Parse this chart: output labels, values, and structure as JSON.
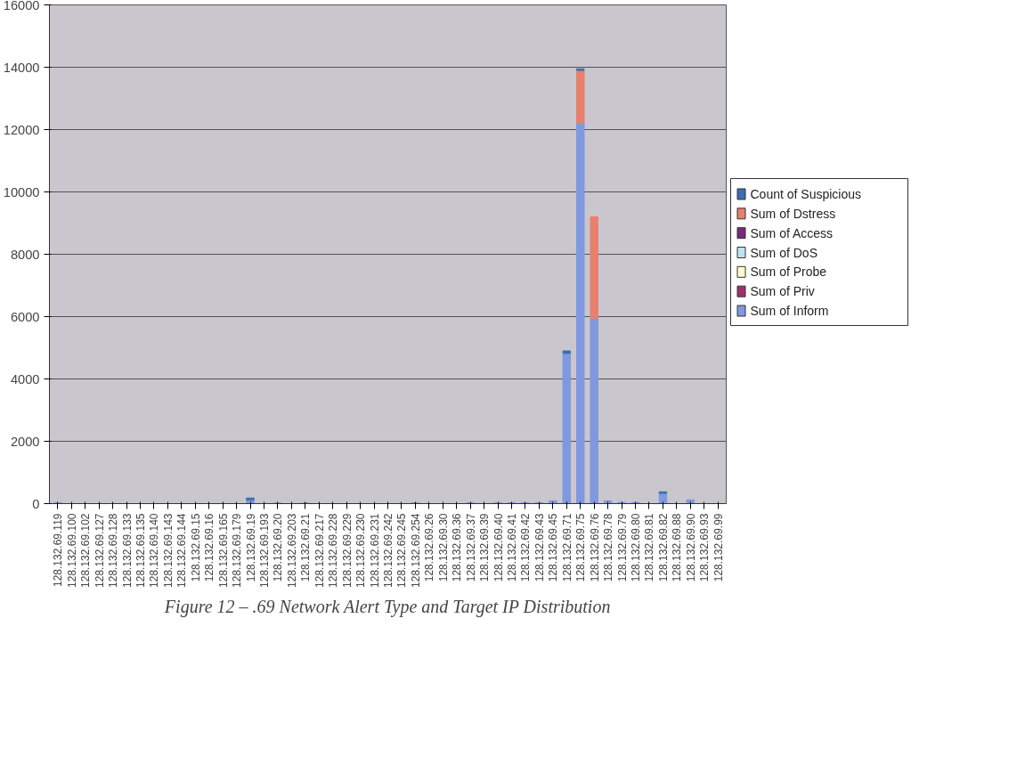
{
  "chart_data": {
    "type": "bar",
    "stacked": true,
    "categories": [
      "128.132.69.119",
      "128.132.69.100",
      "128.132.69.102",
      "128.132.69.127",
      "128.132.69.128",
      "128.132.69.133",
      "128.132.69.135",
      "128.132.69.140",
      "128.132.69.143",
      "128.132.69.144",
      "128.132.69.15",
      "128.132.69.16",
      "128.132.69.165",
      "128.132.69.179",
      "128.132.69.19",
      "128.132.69.193",
      "128.132.69.20",
      "128.132.69.203",
      "128.132.69.21",
      "128.132.69.217",
      "128.132.69.228",
      "128.132.69.229",
      "128.132.69.230",
      "128.132.69.231",
      "128.132.69.242",
      "128.132.69.245",
      "128.132.69.254",
      "128.132.69.26",
      "128.132.69.30",
      "128.132.69.36",
      "128.132.69.37",
      "128.132.69.39",
      "128.132.69.40",
      "128.132.69.41",
      "128.132.69.42",
      "128.132.69.43",
      "128.132.69.45",
      "128.132.69.71",
      "128.132.69.75",
      "128.132.69.76",
      "128.132.69.78",
      "128.132.69.79",
      "128.132.69.80",
      "128.132.69.81",
      "128.132.69.82",
      "128.132.69.88",
      "128.132.69.90",
      "128.132.69.93",
      "128.132.69.99"
    ],
    "series": [
      {
        "name": "Sum of Inform",
        "color": "#7f98e0",
        "values": [
          30,
          0,
          0,
          0,
          0,
          0,
          0,
          0,
          0,
          0,
          0,
          0,
          0,
          0,
          120,
          0,
          20,
          0,
          20,
          0,
          0,
          0,
          0,
          0,
          0,
          0,
          30,
          0,
          0,
          0,
          30,
          0,
          30,
          30,
          30,
          30,
          90,
          4820,
          12200,
          5950,
          90,
          40,
          40,
          0,
          330,
          0,
          120,
          0,
          0
        ]
      },
      {
        "name": "Sum of Priv",
        "color": "#a0306a",
        "values": [
          0,
          0,
          0,
          0,
          0,
          0,
          0,
          0,
          0,
          0,
          0,
          0,
          0,
          0,
          0,
          0,
          0,
          0,
          0,
          0,
          0,
          0,
          0,
          0,
          0,
          0,
          0,
          0,
          0,
          0,
          0,
          0,
          0,
          0,
          0,
          0,
          0,
          0,
          0,
          0,
          0,
          0,
          0,
          0,
          0,
          0,
          0,
          0,
          0
        ]
      },
      {
        "name": "Sum of Probe",
        "color": "#ffffcc",
        "values": [
          0,
          0,
          0,
          0,
          0,
          0,
          0,
          0,
          0,
          0,
          0,
          0,
          0,
          0,
          0,
          0,
          0,
          0,
          0,
          0,
          0,
          0,
          0,
          0,
          0,
          0,
          0,
          0,
          0,
          0,
          0,
          0,
          0,
          0,
          0,
          0,
          0,
          0,
          0,
          0,
          0,
          0,
          0,
          0,
          0,
          0,
          0,
          0,
          0
        ]
      },
      {
        "name": "Sum of DoS",
        "color": "#bfe4ee",
        "values": [
          0,
          0,
          0,
          0,
          0,
          0,
          0,
          0,
          0,
          0,
          0,
          0,
          0,
          0,
          0,
          0,
          0,
          0,
          0,
          0,
          0,
          0,
          0,
          0,
          0,
          0,
          0,
          0,
          0,
          0,
          0,
          0,
          0,
          0,
          0,
          0,
          0,
          0,
          0,
          0,
          0,
          0,
          0,
          0,
          0,
          0,
          0,
          0,
          0
        ]
      },
      {
        "name": "Sum of Access",
        "color": "#7a2a7a",
        "values": [
          0,
          0,
          0,
          0,
          0,
          0,
          0,
          0,
          0,
          0,
          0,
          0,
          0,
          0,
          0,
          0,
          0,
          0,
          0,
          0,
          0,
          0,
          0,
          0,
          0,
          0,
          0,
          0,
          0,
          0,
          0,
          0,
          0,
          0,
          0,
          0,
          0,
          0,
          0,
          0,
          0,
          0,
          0,
          0,
          0,
          0,
          0,
          0,
          0
        ]
      },
      {
        "name": "Sum of Dstress",
        "color": "#e8806e",
        "values": [
          0,
          0,
          0,
          0,
          0,
          0,
          0,
          0,
          0,
          0,
          0,
          0,
          0,
          0,
          0,
          0,
          0,
          0,
          0,
          0,
          0,
          0,
          0,
          0,
          0,
          0,
          0,
          0,
          0,
          0,
          0,
          0,
          0,
          0,
          0,
          0,
          0,
          0,
          1700,
          3250,
          0,
          0,
          0,
          0,
          0,
          0,
          0,
          0,
          0
        ]
      },
      {
        "name": "Count of Suspicious",
        "color": "#3a6fb0",
        "values": [
          0,
          0,
          0,
          0,
          0,
          0,
          0,
          0,
          0,
          0,
          0,
          0,
          0,
          0,
          60,
          0,
          0,
          0,
          0,
          0,
          0,
          0,
          0,
          0,
          0,
          0,
          0,
          0,
          0,
          0,
          0,
          0,
          0,
          0,
          0,
          0,
          0,
          80,
          50,
          0,
          0,
          0,
          0,
          0,
          50,
          0,
          0,
          0,
          0
        ]
      }
    ],
    "ylim": [
      0,
      16000
    ],
    "yticks": [
      0,
      2000,
      4000,
      6000,
      8000,
      10000,
      12000,
      14000,
      16000
    ],
    "grid": "y",
    "legend": "right",
    "annotations": [
      "Figure 12 – .69 Network Alert Type and Target IP Distribution"
    ]
  }
}
